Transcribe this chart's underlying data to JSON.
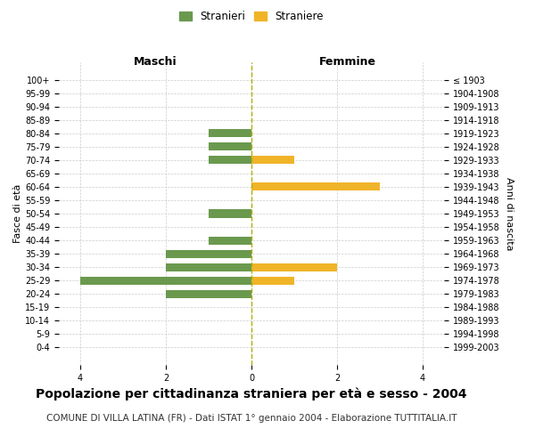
{
  "age_groups": [
    "100+",
    "95-99",
    "90-94",
    "85-89",
    "80-84",
    "75-79",
    "70-74",
    "65-69",
    "60-64",
    "55-59",
    "50-54",
    "45-49",
    "40-44",
    "35-39",
    "30-34",
    "25-29",
    "20-24",
    "15-19",
    "10-14",
    "5-9",
    "0-4"
  ],
  "birth_years": [
    "≤ 1903",
    "1904-1908",
    "1909-1913",
    "1914-1918",
    "1919-1923",
    "1924-1928",
    "1929-1933",
    "1934-1938",
    "1939-1943",
    "1944-1948",
    "1949-1953",
    "1954-1958",
    "1959-1963",
    "1964-1968",
    "1969-1973",
    "1974-1978",
    "1979-1983",
    "1984-1988",
    "1989-1993",
    "1994-1998",
    "1999-2003"
  ],
  "males": [
    0,
    0,
    0,
    0,
    1,
    1,
    1,
    0,
    0,
    0,
    1,
    0,
    1,
    2,
    2,
    4,
    2,
    0,
    0,
    0,
    0
  ],
  "females": [
    0,
    0,
    0,
    0,
    0,
    0,
    1,
    0,
    3,
    0,
    0,
    0,
    0,
    0,
    2,
    1,
    0,
    0,
    0,
    0,
    0
  ],
  "male_color": "#6a994e",
  "female_color": "#f0b429",
  "title": "Popolazione per cittadinanza straniera per età e sesso - 2004",
  "subtitle": "COMUNE DI VILLA LATINA (FR) - Dati ISTAT 1° gennaio 2004 - Elaborazione TUTTITALIA.IT",
  "legend_male": "Stranieri",
  "legend_female": "Straniere",
  "header_left": "Maschi",
  "header_right": "Femmine",
  "ylabel_left": "Fasce di età",
  "ylabel_right": "Anni di nascita",
  "xlim": 4.5,
  "background_color": "#ffffff",
  "grid_color": "#cccccc",
  "centerline_color": "#b0b000",
  "title_fontsize": 10,
  "subtitle_fontsize": 7.5,
  "tick_fontsize": 7,
  "header_fontsize": 9,
  "ylabel_fontsize": 8
}
